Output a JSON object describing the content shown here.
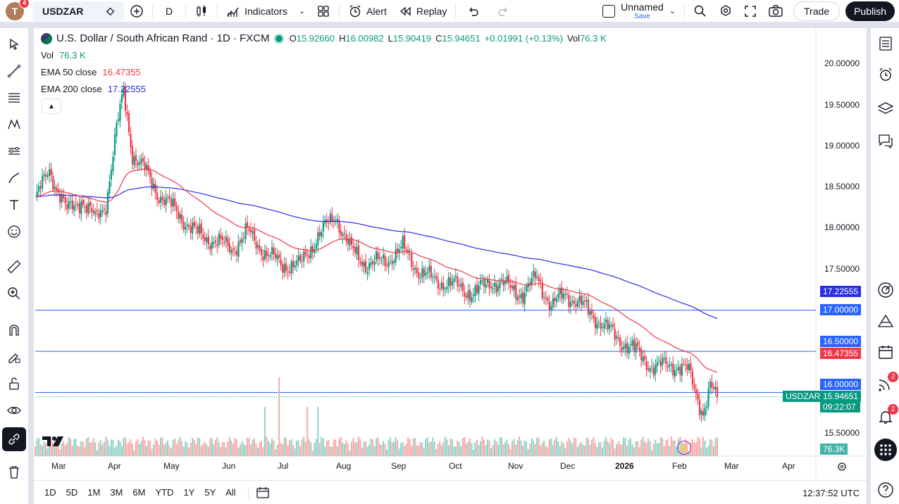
{
  "topbar": {
    "avatar_letter": "T",
    "avatar_badge": "4",
    "symbol": "USDZAR",
    "interval": "D",
    "indicators_label": "Indicators",
    "alert_label": "Alert",
    "replay_label": "Replay",
    "layout_name": "Unnamed",
    "save_label": "Save",
    "trade_label": "Trade",
    "publish_label": "Publish"
  },
  "legend": {
    "title": "U.S. Dollar / South African Rand · 1D · FXCM",
    "open_label": "O",
    "open": "15.92660",
    "high_label": "H",
    "high": "16.00982",
    "low_label": "L",
    "low": "15.90419",
    "close_label": "C",
    "close": "15.94651",
    "change": "+0.01991 (+0.13%)",
    "vol_label": "Vol",
    "vol": "76.3 K",
    "vol_row_label": "Vol",
    "vol_row_value": "76.3 K",
    "ema50_label": "EMA 50 close",
    "ema50_value": "16.47355",
    "ema200_label": "EMA 200 close",
    "ema200_value": "17.22555"
  },
  "price_axis": {
    "labels": [
      "20.00000",
      "19.50000",
      "19.00000",
      "18.50000",
      "18.00000",
      "17.50000",
      "15.50000"
    ],
    "tags": {
      "ema200": "17.22555",
      "level_17": "17.00000",
      "level_165": "16.50000",
      "ema50": "16.47355",
      "level_16": "16.00000",
      "symbol": "USDZAR",
      "last": "15.94651",
      "countdown": "09:22:07",
      "volume": "76.3K"
    }
  },
  "time_axis": [
    "Mar",
    "Apr",
    "May",
    "Jun",
    "Jul",
    "Aug",
    "Sep",
    "Oct",
    "Nov",
    "Dec",
    "2026",
    "Feb",
    "Mar",
    "Apr"
  ],
  "bottombar": {
    "ranges": [
      "1D",
      "5D",
      "1M",
      "3M",
      "6M",
      "YTD",
      "1Y",
      "5Y",
      "All"
    ],
    "clock": "12:37:52 UTC"
  },
  "right_toolbar": {
    "alerts_badge": "2",
    "notifications_badge": "2"
  },
  "colors": {
    "up": "#089981",
    "down": "#f23645",
    "ema50": "#f23645",
    "ema200": "#2a2ee0",
    "hline": "#2962ff",
    "accent": "#2962ff"
  },
  "chart_data": {
    "type": "candlestick",
    "symbol": "USDZAR",
    "interval": "1D",
    "ylim": [
      15.3,
      20.2
    ],
    "hlines": [
      17.0,
      16.5,
      16.0
    ],
    "key_points": [
      {
        "month": "Mar",
        "close": 18.4
      },
      {
        "month": "Apr",
        "close": 19.6
      },
      {
        "month": "May",
        "close": 18.6
      },
      {
        "month": "Jun",
        "close": 17.9
      },
      {
        "month": "Jul",
        "close": 17.7
      },
      {
        "month": "Aug",
        "close": 17.9
      },
      {
        "month": "Sep",
        "close": 17.6
      },
      {
        "month": "Oct",
        "close": 17.3
      },
      {
        "month": "Nov",
        "close": 17.3
      },
      {
        "month": "Dec",
        "close": 17.0
      },
      {
        "month": "2026",
        "close": 16.4
      },
      {
        "month": "Feb",
        "close": 15.95
      }
    ],
    "ema50_last": 16.47355,
    "ema200_last": 17.22555
  }
}
